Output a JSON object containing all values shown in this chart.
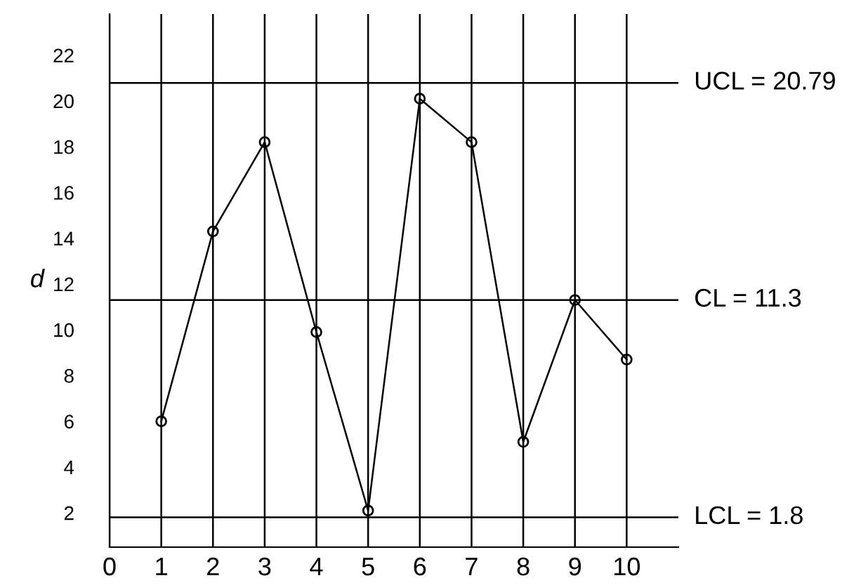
{
  "chart_data": {
    "type": "line",
    "ylabel": "d",
    "x": [
      1,
      2,
      3,
      4,
      5,
      6,
      7,
      8,
      9,
      10
    ],
    "series": [
      {
        "color": "#000000",
        "values": [
          6.0,
          14.3,
          18.2,
          9.9,
          2.1,
          20.1,
          18.2,
          5.1,
          11.3,
          8.7
        ]
      }
    ],
    "xlim": [
      0,
      11
    ],
    "xticks": [
      0,
      1,
      2,
      3,
      4,
      5,
      6,
      7,
      8,
      9,
      10
    ],
    "ylim": [
      0.5,
      23.8
    ],
    "yticks": [
      2,
      4,
      6,
      8,
      10,
      12,
      14,
      16,
      18,
      20,
      22
    ],
    "grid": "x",
    "marker": "circle",
    "line_style": "solid",
    "ref_lines": [
      {
        "axis": "y",
        "value": 20.79,
        "label": "UCL = 20.79",
        "color": "#000000"
      },
      {
        "axis": "y",
        "value": 11.3,
        "label": "CL = 11.3",
        "color": "#000000"
      },
      {
        "axis": "y",
        "value": 1.8,
        "label": "LCL = 1.8",
        "color": "#000000"
      }
    ]
  }
}
